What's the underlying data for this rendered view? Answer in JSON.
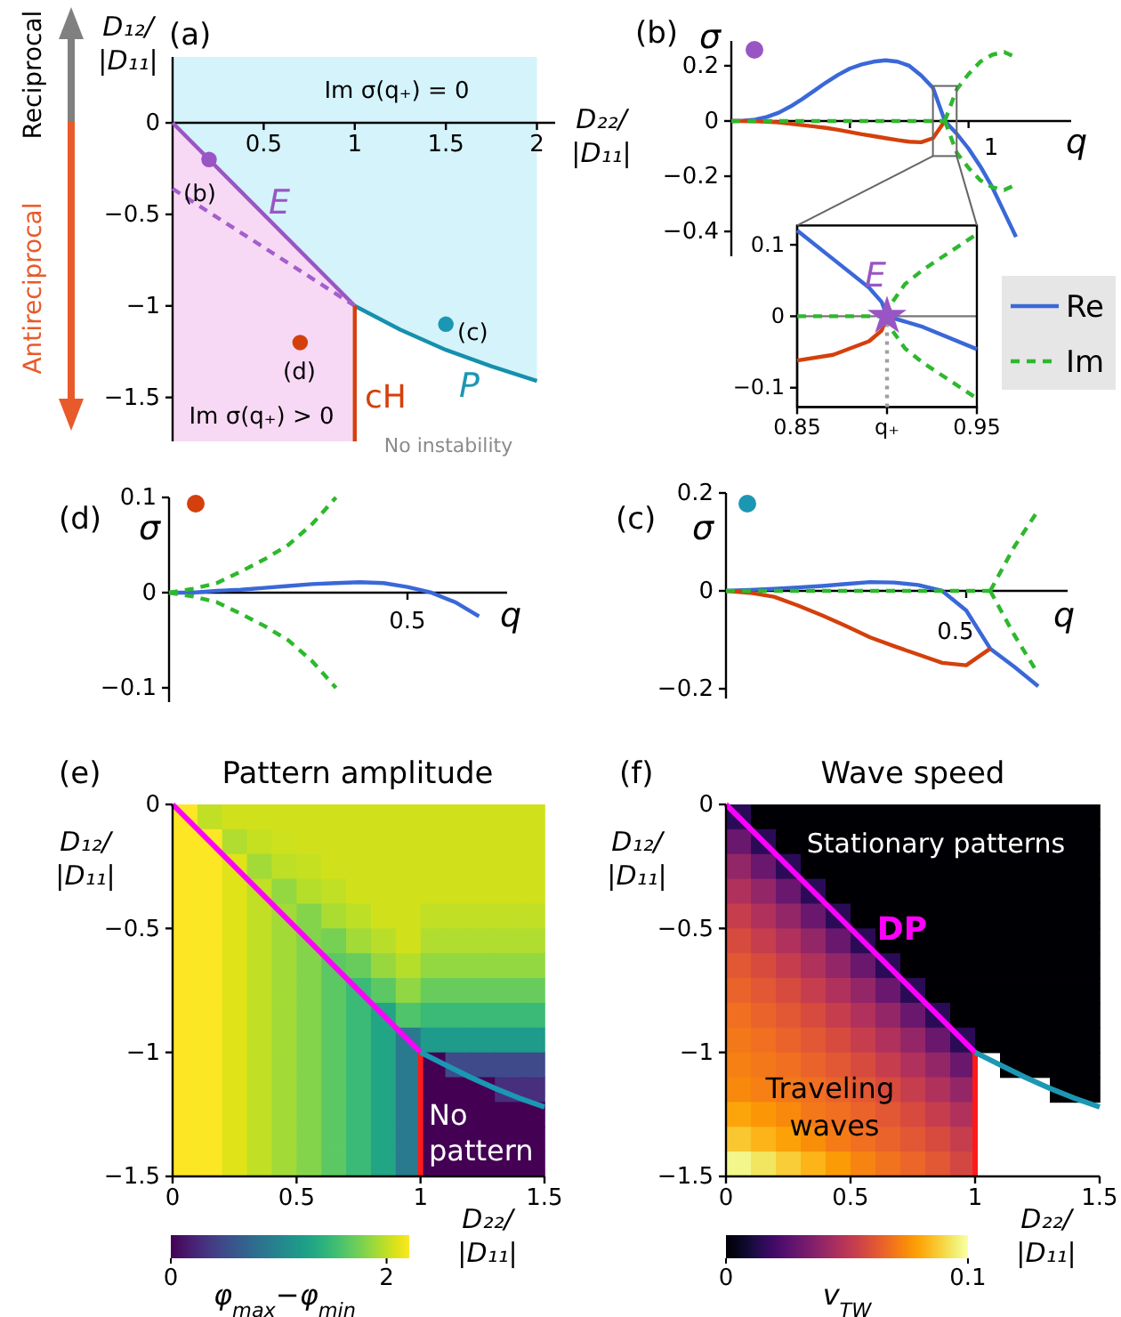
{
  "chart_data": [
    {
      "type": "line",
      "xlabel": "D₂₂/|D₁₁|",
      "ylabel": "D₁₂/|D₁₁|",
      "xlim": [
        0,
        2.1
      ],
      "ylim": [
        -1.74,
        0.36
      ],
      "xticks": [
        0.5,
        1,
        1.5,
        2
      ],
      "yticks": [
        -1.5,
        -1,
        -0.5,
        0
      ],
      "series": [
        {
          "type": "line",
          "color": "#9a55c4",
          "x": [
            0,
            1
          ],
          "values": [
            0,
            -1
          ]
        },
        {
          "type": "line",
          "color": "#1590ad",
          "x": [
            1,
            1.25,
            1.5,
            1.75,
            2
          ],
          "values": [
            -1,
            -1.13,
            -1.24,
            -1.33,
            -1.41
          ]
        },
        {
          "type": "line",
          "color": "#a35fcc",
          "line_style": "dashed",
          "x": [
            0,
            1
          ],
          "values": [
            -0.36,
            -1
          ]
        },
        {
          "type": "line",
          "color": "#d4400c",
          "x": [
            1,
            1
          ],
          "values": [
            -1,
            -1.74
          ]
        },
        {
          "type": "scatter",
          "marker": "circle",
          "color": "#9a55c4",
          "x": [
            0.2
          ],
          "values": [
            -0.2
          ]
        },
        {
          "type": "scatter",
          "marker": "circle",
          "color": "#1b97b3",
          "x": [
            1.5
          ],
          "values": [
            -1.1
          ]
        },
        {
          "type": "scatter",
          "marker": "circle",
          "color": "#d4400c",
          "x": [
            0.7
          ],
          "values": [
            -1.2
          ]
        }
      ],
      "annotations": [
        "(a)",
        "Im σ(q₊) = 0",
        "Im σ(q₊) > 0",
        "No instability",
        "E",
        "P",
        "cH",
        "(b)",
        "(c)",
        "(d)",
        "Reciprocal",
        "Antireciprocal"
      ]
    },
    {
      "type": "line",
      "xlabel": "q",
      "ylabel": "σ",
      "categories": [
        null,
        null,
        null,
        null,
        null,
        null,
        null,
        null,
        null,
        null,
        null,
        null,
        null,
        null,
        null,
        null,
        null,
        null,
        null,
        null,
        null,
        null,
        null,
        null,
        null
      ],
      "ylim": [
        -0.49,
        0.29
      ],
      "yticks": [
        -0.4,
        -0.2,
        0,
        0.2
      ],
      "legend": "right",
      "series": [
        {
          "name": "Re",
          "color": "#3a68d8",
          "values": [
            0,
            0.001,
            0.005,
            0.015,
            0.03,
            0.053,
            0.08,
            0.11,
            0.14,
            0.167,
            0.19,
            0.205,
            0.215,
            0.22,
            0.215,
            0.2,
            0.165,
            0.12,
            0,
            -0.046,
            -0.1,
            -0.165,
            -0.24,
            -0.33,
            -0.42
          ]
        },
        {
          "color": "#d4400c",
          "values": [
            0,
            0,
            -0.001,
            -0.003,
            -0.005,
            -0.01,
            -0.015,
            -0.02,
            -0.025,
            -0.032,
            -0.04,
            -0.048,
            -0.055,
            -0.062,
            -0.069,
            -0.075,
            -0.077,
            -0.062,
            0,
            null,
            null,
            null,
            null,
            null,
            null
          ]
        },
        {
          "name": "Im",
          "color": "#2db82d",
          "line_style": "dashed",
          "values": [
            0,
            0,
            0,
            0,
            0,
            0,
            0,
            0,
            0,
            0,
            0,
            0,
            0,
            0,
            0,
            0,
            0,
            0,
            0,
            null,
            null,
            null,
            null,
            null,
            null
          ]
        },
        {
          "color": "#2db82d",
          "line_style": "dashed",
          "values": [
            null,
            null,
            null,
            null,
            null,
            null,
            null,
            null,
            null,
            null,
            null,
            null,
            null,
            null,
            null,
            null,
            null,
            null,
            0,
            0.115,
            0.17,
            0.215,
            0.24,
            0.25,
            0.23
          ]
        },
        {
          "color": "#2db82d",
          "line_style": "dashed",
          "values": [
            null,
            null,
            null,
            null,
            null,
            null,
            null,
            null,
            null,
            null,
            null,
            null,
            null,
            null,
            null,
            null,
            null,
            null,
            0,
            -0.115,
            -0.17,
            -0.215,
            -0.24,
            -0.25,
            -0.23
          ]
        }
      ],
      "annotations": [
        "(b)",
        "1"
      ]
    },
    {
      "type": "line",
      "xlim": [
        0.85,
        0.95
      ],
      "ylim": [
        -0.127,
        0.127
      ],
      "xticks": [
        0.85,
        {
          "value": 0.9,
          "label": "q₊"
        },
        0.95
      ],
      "yticks": [
        -0.1,
        0,
        0.1
      ],
      "ref_lines": [
        {
          "axis": "y",
          "value": 0,
          "color": "#777777"
        }
      ],
      "series": [
        {
          "color": "#a0a0a0",
          "line_style": "dotted",
          "x": [
            0.9,
            0.9
          ],
          "values": [
            -0.127,
            0
          ]
        },
        {
          "color": "#3a68d8",
          "x": [
            0.85,
            0.87,
            0.89,
            0.897,
            0.9,
            0.92,
            0.95
          ],
          "values": [
            0.12,
            0.08,
            0.04,
            0.02,
            0,
            -0.015,
            -0.046
          ]
        },
        {
          "color": "#d4400c",
          "x": [
            0.85,
            0.87,
            0.89,
            0.897,
            0.9
          ],
          "values": [
            -0.062,
            -0.054,
            -0.035,
            -0.02,
            0
          ]
        },
        {
          "color": "#2db82d",
          "line_style": "dashed",
          "x": [
            0.85,
            0.9
          ],
          "values": [
            0,
            0
          ]
        },
        {
          "color": "#2db82d",
          "line_style": "dashed",
          "x": [
            0.9,
            0.903,
            0.91,
            0.92,
            0.935,
            0.95
          ],
          "values": [
            0,
            0.02,
            0.045,
            0.065,
            0.09,
            0.115
          ]
        },
        {
          "color": "#2db82d",
          "line_style": "dashed",
          "x": [
            0.9,
            0.903,
            0.91,
            0.92,
            0.935,
            0.95
          ],
          "values": [
            0,
            -0.02,
            -0.045,
            -0.065,
            -0.09,
            -0.115
          ]
        },
        {
          "type": "scatter",
          "marker": "star",
          "color": "#9a55c4",
          "x": [
            0.9
          ],
          "values": [
            0
          ]
        }
      ],
      "annotations": [
        "E"
      ]
    },
    {
      "type": "line",
      "xlabel": "q",
      "ylabel": "σ",
      "categories": [
        null,
        null,
        null,
        null,
        null,
        null,
        null,
        null,
        null,
        null,
        null,
        null,
        null,
        null,
        null
      ],
      "ylim": [
        -0.115,
        0.1
      ],
      "yticks": [
        -0.1,
        0,
        0.1
      ],
      "series": [
        {
          "color": "#3a68d8",
          "values": [
            0,
            0,
            0.002,
            0.003,
            0.005,
            0.007,
            0.009,
            0.01,
            0.011,
            0.01,
            0.006,
            0,
            -0.01,
            -0.025,
            null
          ]
        },
        {
          "color": "#2db82d",
          "line_style": "dashed",
          "values": [
            0,
            0.004,
            0.01,
            0.022,
            0.035,
            0.05,
            0.072,
            0.1,
            null,
            null,
            null,
            null,
            null,
            null,
            null
          ]
        },
        {
          "color": "#2db82d",
          "line_style": "dashed",
          "values": [
            0,
            -0.004,
            -0.01,
            -0.022,
            -0.035,
            -0.05,
            -0.072,
            -0.1,
            null,
            null,
            null,
            null,
            null,
            null,
            null
          ]
        }
      ],
      "annotations": [
        "(d)",
        "0.5"
      ]
    },
    {
      "type": "line",
      "xlabel": "q",
      "ylabel": "σ",
      "categories": [
        null,
        null,
        null,
        null,
        null,
        null,
        null,
        null,
        null,
        null,
        null,
        null,
        null,
        null,
        null
      ],
      "ylim": [
        -0.22,
        0.2
      ],
      "yticks": [
        -0.2,
        0,
        0.2
      ],
      "series": [
        {
          "color": "#3a68d8",
          "values": [
            0,
            0.002,
            0.004,
            0.007,
            0.01,
            0.014,
            0.018,
            0.017,
            0.012,
            0,
            -0.04,
            -0.118,
            -0.155,
            -0.195,
            null
          ]
        },
        {
          "color": "#d4400c",
          "values": [
            0,
            -0.004,
            -0.012,
            -0.03,
            -0.05,
            -0.072,
            -0.095,
            -0.113,
            -0.13,
            -0.147,
            -0.152,
            -0.118,
            null,
            null,
            null
          ]
        },
        {
          "color": "#2db82d",
          "line_style": "dashed",
          "values": [
            0,
            0,
            0,
            0,
            0,
            0,
            0,
            0,
            0,
            0,
            0,
            0,
            null,
            null,
            null
          ]
        },
        {
          "color": "#2db82d",
          "line_style": "dashed",
          "values": [
            null,
            null,
            null,
            null,
            null,
            null,
            null,
            null,
            null,
            null,
            null,
            0,
            0.09,
            0.165,
            null
          ]
        },
        {
          "color": "#2db82d",
          "line_style": "dashed",
          "values": [
            null,
            null,
            null,
            null,
            null,
            null,
            null,
            null,
            null,
            null,
            null,
            0,
            -0.09,
            -0.17,
            null
          ]
        }
      ],
      "annotations": [
        "(c)",
        "0.5"
      ]
    },
    {
      "type": "heatmap",
      "title": "Pattern amplitude",
      "xlabel": "D₂₂/|D₁₁|",
      "ylabel": "D₁₂/|D₁₁|",
      "clabel": "φ$_{max}$−φ$_{min}$",
      "xlim": [
        0,
        1.5
      ],
      "ylim": [
        -1.5,
        0
      ],
      "xticks": [
        0,
        0.5,
        1,
        1.5
      ],
      "yticks": [
        -1.5,
        -1,
        -0.5,
        0
      ],
      "clim": [
        0,
        2.21
      ],
      "cticks": [
        0,
        2
      ],
      "cells": [
        [
          2.25,
          2.0,
          2.05,
          2.05,
          2.05,
          2.05,
          2.05,
          2.05,
          2.05,
          2.05,
          2.05,
          2.05,
          2.05,
          2.05,
          2.05
        ],
        [
          2.25,
          2.2,
          1.95,
          2.02,
          2.04,
          2.05,
          2.05,
          2.05,
          2.05,
          2.05,
          2.05,
          2.05,
          2.05,
          2.05,
          2.05
        ],
        [
          2.25,
          2.2,
          2.1,
          1.9,
          1.99,
          2.02,
          2.05,
          2.05,
          2.05,
          2.05,
          2.05,
          2.05,
          2.05,
          2.05,
          2.05
        ],
        [
          2.25,
          2.2,
          2.1,
          2.0,
          1.85,
          1.96,
          2.0,
          2.05,
          2.05,
          2.05,
          2.05,
          2.05,
          2.05,
          2.05,
          2.05
        ],
        [
          2.25,
          2.2,
          2.1,
          2.0,
          1.9,
          1.8,
          1.93,
          1.99,
          2.05,
          2.05,
          2.0,
          2.0,
          2.0,
          2.0,
          2.0
        ],
        [
          2.25,
          2.2,
          2.1,
          2.0,
          1.9,
          1.8,
          1.75,
          1.9,
          1.97,
          2.05,
          1.95,
          1.95,
          1.95,
          1.95,
          1.95
        ],
        [
          2.25,
          2.2,
          2.1,
          2.0,
          1.9,
          1.8,
          1.65,
          1.7,
          1.87,
          1.96,
          1.85,
          1.85,
          1.85,
          1.85,
          1.85
        ],
        [
          2.25,
          2.2,
          2.1,
          2.0,
          1.9,
          1.8,
          1.65,
          1.5,
          1.65,
          1.84,
          1.7,
          1.7,
          1.7,
          1.7,
          1.7
        ],
        [
          2.25,
          2.2,
          2.1,
          2.0,
          1.9,
          1.8,
          1.65,
          1.5,
          1.3,
          1.6,
          1.5,
          1.5,
          1.5,
          1.5,
          1.5
        ],
        [
          2.25,
          2.2,
          2.1,
          2.0,
          1.9,
          1.8,
          1.65,
          1.5,
          1.3,
          0.9,
          1.2,
          1.2,
          1.2,
          1.2,
          1.2
        ],
        [
          2.25,
          2.2,
          2.1,
          2.0,
          1.9,
          1.8,
          1.65,
          1.5,
          1.3,
          0.9,
          0,
          0.5,
          0.5,
          0.5,
          0.5
        ],
        [
          2.25,
          2.2,
          2.1,
          2.0,
          1.9,
          1.8,
          1.65,
          1.5,
          1.3,
          0.9,
          0,
          0,
          0,
          0.3,
          0.3
        ],
        [
          2.25,
          2.2,
          2.1,
          2.0,
          1.9,
          1.8,
          1.65,
          1.5,
          1.3,
          0.9,
          0,
          0,
          0,
          0,
          0
        ],
        [
          2.25,
          2.2,
          2.1,
          2.0,
          1.9,
          1.8,
          1.65,
          1.5,
          1.3,
          0.9,
          0,
          0,
          0,
          0,
          0
        ],
        [
          2.25,
          2.2,
          2.1,
          2.0,
          1.9,
          1.8,
          1.65,
          1.5,
          1.3,
          0.9,
          0,
          0,
          0,
          0,
          0
        ]
      ],
      "series": [
        {
          "type": "line",
          "color": "#ff00ff",
          "x": [
            0,
            1
          ],
          "values": [
            0,
            -1
          ]
        },
        {
          "type": "line",
          "color": "#ff1a1a",
          "x": [
            1,
            1
          ],
          "values": [
            -1,
            -1.5
          ]
        },
        {
          "type": "line",
          "color": "#1b97b3",
          "x": [
            1,
            1.1,
            1.2,
            1.3,
            1.4,
            1.5
          ],
          "values": [
            -1,
            -1.05,
            -1.1,
            -1.145,
            -1.185,
            -1.22
          ]
        }
      ],
      "annotations": [
        "(e)",
        "No pattern"
      ]
    },
    {
      "type": "heatmap",
      "title": "Wave speed",
      "xlabel": "D₂₂/|D₁₁|",
      "ylabel": "D₁₂/|D₁₁|",
      "clabel": "v$_{TW}$",
      "xlim": [
        0,
        1.5
      ],
      "ylim": [
        -1.5,
        0
      ],
      "xticks": [
        0,
        0.5,
        1,
        1.5
      ],
      "yticks": [
        -1.5,
        -1,
        -0.5,
        0
      ],
      "clim": [
        0,
        0.1
      ],
      "cticks": [
        0,
        0.1
      ],
      "cells": [
        [
          0.015,
          0,
          0,
          0,
          0,
          0,
          0,
          0,
          0,
          0,
          0,
          0,
          0,
          0,
          0
        ],
        [
          0.03,
          0.015,
          0,
          0,
          0,
          0,
          0,
          0,
          0,
          0,
          0,
          0,
          0,
          0,
          0
        ],
        [
          0.04,
          0.03,
          0.015,
          0,
          0,
          0,
          0,
          0,
          0,
          0,
          0,
          0,
          0,
          0,
          0
        ],
        [
          0.047,
          0.04,
          0.03,
          0.015,
          0,
          0,
          0,
          0,
          0,
          0,
          0,
          0,
          0,
          0,
          0
        ],
        [
          0.053,
          0.047,
          0.04,
          0.03,
          0.015,
          0,
          0,
          0,
          0,
          0,
          0,
          0,
          0,
          0,
          0
        ],
        [
          0.058,
          0.053,
          0.047,
          0.04,
          0.03,
          0.015,
          0,
          0,
          0,
          0,
          0,
          0,
          0,
          0,
          0
        ],
        [
          0.062,
          0.058,
          0.053,
          0.047,
          0.04,
          0.03,
          0.015,
          0,
          0,
          0,
          0,
          0,
          0,
          0,
          0
        ],
        [
          0.065,
          0.062,
          0.058,
          0.053,
          0.047,
          0.04,
          0.03,
          0.015,
          0,
          0,
          0,
          0,
          0,
          0,
          0
        ],
        [
          0.068,
          0.065,
          0.062,
          0.058,
          0.053,
          0.047,
          0.04,
          0.03,
          0.015,
          0,
          0,
          0,
          0,
          0,
          0
        ],
        [
          0.07,
          0.068,
          0.065,
          0.062,
          0.058,
          0.053,
          0.047,
          0.04,
          0.03,
          0.015,
          0,
          0,
          0,
          0,
          0
        ],
        [
          0.072,
          0.07,
          0.068,
          0.065,
          0.062,
          0.058,
          0.053,
          0.047,
          0.04,
          0.03,
          null,
          0,
          0,
          0,
          0
        ],
        [
          0.074,
          0.072,
          0.07,
          0.068,
          0.065,
          0.062,
          0.058,
          0.053,
          0.047,
          0.04,
          null,
          null,
          null,
          0,
          0
        ],
        [
          0.08,
          0.077,
          0.074,
          0.07,
          0.068,
          0.065,
          0.062,
          0.058,
          0.053,
          0.047,
          null,
          null,
          null,
          null,
          null
        ],
        [
          0.087,
          0.083,
          0.079,
          0.075,
          0.071,
          0.068,
          0.065,
          0.062,
          0.058,
          0.053,
          null,
          null,
          null,
          null,
          null
        ],
        [
          0.097,
          0.093,
          0.088,
          0.083,
          0.078,
          0.073,
          0.069,
          0.066,
          0.062,
          0.057,
          null,
          null,
          null,
          null,
          null
        ]
      ],
      "series": [
        {
          "type": "line",
          "color": "#ff00ff",
          "x": [
            0,
            1
          ],
          "values": [
            0,
            -1
          ]
        },
        {
          "type": "line",
          "color": "#ff1a1a",
          "x": [
            1,
            1
          ],
          "values": [
            -1,
            -1.5
          ]
        },
        {
          "type": "line",
          "color": "#1b97b3",
          "x": [
            1,
            1.1,
            1.2,
            1.3,
            1.4,
            1.5
          ],
          "values": [
            -1,
            -1.05,
            -1.1,
            -1.145,
            -1.185,
            -1.22
          ]
        }
      ],
      "annotations": [
        "(f)",
        "Stationary patterns",
        "DP",
        "Traveling waves"
      ]
    }
  ]
}
